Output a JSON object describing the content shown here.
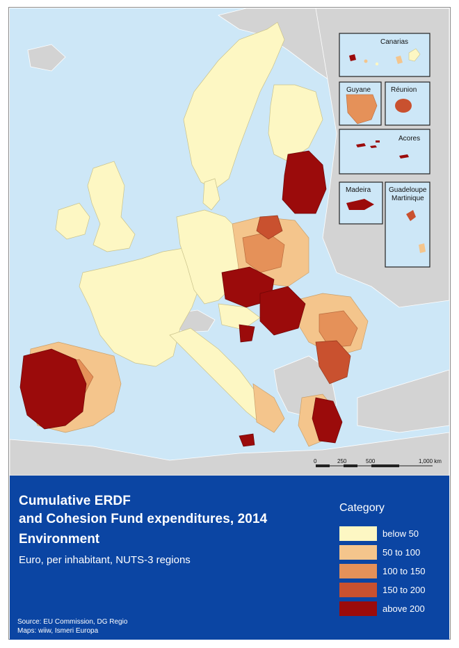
{
  "map": {
    "insets": {
      "canarias": "Canarias",
      "guyane": "Guyane",
      "reunion": "Réunion",
      "acores": "Acores",
      "madeira": "Madeira",
      "guadeloupe": "Guadeloupe",
      "martinique": "Martinique"
    },
    "scale_labels": [
      "0",
      "250",
      "500",
      "1,000 km"
    ]
  },
  "legend_panel": {
    "title_line_1": "Cumulative ERDF",
    "title_line_2": "and Cohesion Fund expenditures, 2014",
    "subtitle": "Environment",
    "units": "Euro, per inhabitant, NUTS-3 regions",
    "category_title": "Category",
    "categories": [
      {
        "label": "below 50",
        "color": "#fdf7c3"
      },
      {
        "label": "50 to 100",
        "color": "#f4c58c"
      },
      {
        "label": "100 to 150",
        "color": "#e59159"
      },
      {
        "label": "150 to 200",
        "color": "#c9512f"
      },
      {
        "label": "above 200",
        "color": "#9b0b0b"
      }
    ],
    "source_line_1": "Source: EU Commission, DG Regio",
    "source_line_2": "Maps: wiiw, Ismeri Europa"
  },
  "colors": {
    "sea": "#cde7f7",
    "non_eu_land": "#d3d3d3",
    "panel_blue": "#0b45a3"
  }
}
